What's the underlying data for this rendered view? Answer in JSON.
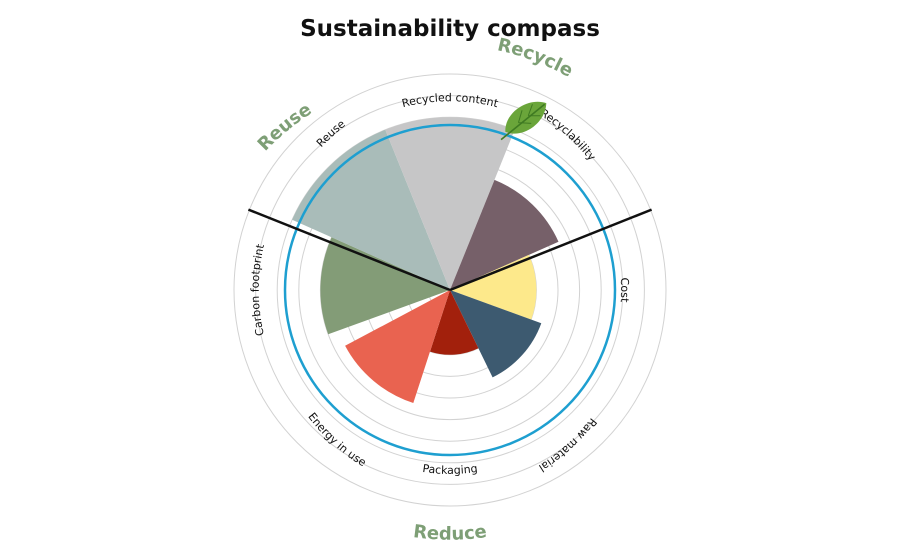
{
  "title": "Sustainability compass",
  "colors": {
    "ring": "#1e9fd0",
    "group_label": "#7e9f76",
    "divider": "#111111",
    "leaf": "#6aa53a"
  },
  "groups": [
    {
      "id": "reuse",
      "label": "Reuse"
    },
    {
      "id": "recycle",
      "label": "Recycle"
    },
    {
      "id": "reduce",
      "label": "Reduce"
    }
  ],
  "segments": [
    {
      "id": "reuse",
      "label": "Reuse",
      "group": "reuse",
      "value": 6,
      "color": "#839c77"
    },
    {
      "id": "recycled-content",
      "label": "Recycled content",
      "group": "recycle",
      "value": 8,
      "color": "#a9bcb9"
    },
    {
      "id": "recyclability",
      "label": "Recyclability",
      "group": "recycle",
      "value": 8,
      "color": "#c6c6c7"
    },
    {
      "id": "cost",
      "label": "Cost",
      "group": "reduce",
      "value": 5.5,
      "color": "#766069"
    },
    {
      "id": "raw-material",
      "label": "Raw material",
      "group": "reduce",
      "value": 4,
      "color": "#fde98b"
    },
    {
      "id": "packaging",
      "label": "Packaging",
      "group": "reduce",
      "value": 4.5,
      "color": "#3d5a70"
    },
    {
      "id": "energy-in-use",
      "label": "Energy in use",
      "group": "reduce",
      "value": 3,
      "color": "#a2200c"
    },
    {
      "id": "carbon-footprint",
      "label": "Carbon footprint",
      "group": "reduce",
      "value": 5.5,
      "color": "#e96350"
    }
  ],
  "scale": {
    "max": 8,
    "rings": 10
  }
}
